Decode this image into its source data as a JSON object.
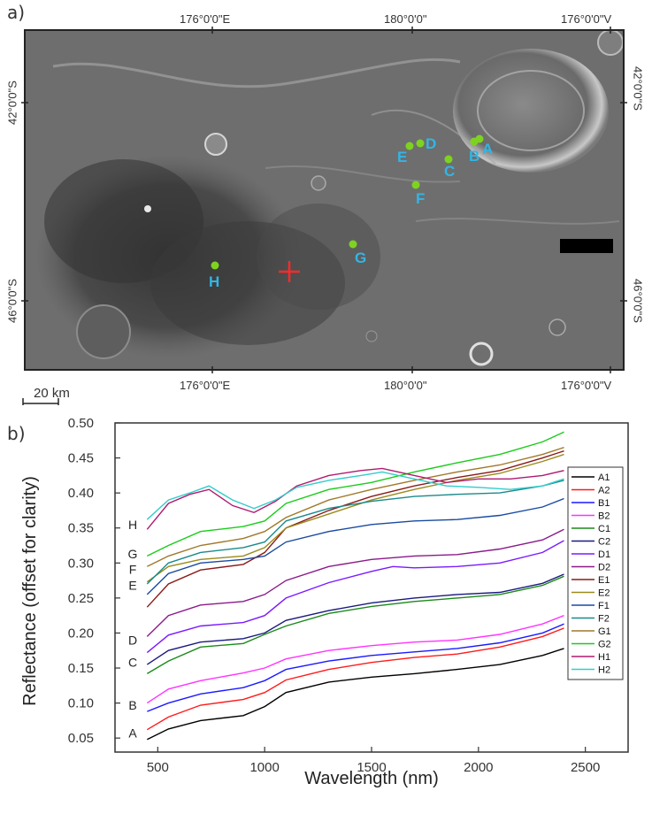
{
  "panel_a": {
    "label": "a)",
    "top_lon_labels": [
      "176°0'0\"E",
      "180°0'0\"",
      "176°0'0\"V"
    ],
    "bottom_lon_labels": [
      "176°0'0\"E",
      "180°0'0\"",
      "176°0'0\"V"
    ],
    "left_lat_labels": [
      "42°0'0\"S",
      "46°0'0\"S"
    ],
    "right_lat_labels": [
      "42°0'0\"S",
      "46°0'0\"S"
    ],
    "scale_bar": "20 km",
    "points": [
      {
        "id": "A",
        "color": "#7ed321"
      },
      {
        "id": "B",
        "color": "#7ed321"
      },
      {
        "id": "C",
        "color": "#7ed321"
      },
      {
        "id": "D",
        "color": "#7ed321"
      },
      {
        "id": "E",
        "color": "#7ed321"
      },
      {
        "id": "F",
        "color": "#7ed321"
      },
      {
        "id": "G",
        "color": "#7ed321"
      },
      {
        "id": "H",
        "color": "#7ed321"
      }
    ],
    "label_color": "#33b5e5",
    "cross_color": "#e02020"
  },
  "panel_b": {
    "label": "b)"
  },
  "chart_data": {
    "type": "line",
    "xlabel": "Wavelength (nm)",
    "ylabel": "Reflectance (offset for clarity)",
    "xlim": [
      300,
      2700
    ],
    "ylim": [
      0.03,
      0.5
    ],
    "xticks": [
      500,
      1000,
      1500,
      2000,
      2500
    ],
    "yticks": [
      0.05,
      0.1,
      0.15,
      0.2,
      0.25,
      0.3,
      0.35,
      0.4,
      0.45,
      0.5
    ],
    "ytick_labels": [
      "0.05",
      "0.10",
      "0.15",
      "0.20",
      "0.25",
      "0.30",
      "0.35",
      "0.40",
      "0.45",
      "0.50"
    ],
    "group_labels": [
      {
        "text": "A",
        "y": 0.057
      },
      {
        "text": "B",
        "y": 0.097
      },
      {
        "text": "C",
        "y": 0.158
      },
      {
        "text": "D",
        "y": 0.19
      },
      {
        "text": "E",
        "y": 0.268
      },
      {
        "text": "F",
        "y": 0.291
      },
      {
        "text": "G",
        "y": 0.313
      },
      {
        "text": "H",
        "y": 0.355
      }
    ],
    "legend_position": "right",
    "series": [
      {
        "name": "A1",
        "color": "#000000",
        "points": [
          [
            450,
            0.048
          ],
          [
            550,
            0.063
          ],
          [
            700,
            0.075
          ],
          [
            900,
            0.082
          ],
          [
            1000,
            0.095
          ],
          [
            1100,
            0.115
          ],
          [
            1300,
            0.13
          ],
          [
            1500,
            0.137
          ],
          [
            1700,
            0.142
          ],
          [
            1900,
            0.148
          ],
          [
            2100,
            0.155
          ],
          [
            2300,
            0.168
          ],
          [
            2400,
            0.178
          ]
        ]
      },
      {
        "name": "A2",
        "color": "#ff1a1a",
        "points": [
          [
            450,
            0.062
          ],
          [
            550,
            0.08
          ],
          [
            700,
            0.097
          ],
          [
            900,
            0.105
          ],
          [
            1000,
            0.115
          ],
          [
            1100,
            0.133
          ],
          [
            1300,
            0.148
          ],
          [
            1500,
            0.158
          ],
          [
            1700,
            0.165
          ],
          [
            1900,
            0.17
          ],
          [
            2100,
            0.18
          ],
          [
            2300,
            0.195
          ],
          [
            2400,
            0.207
          ]
        ]
      },
      {
        "name": "B1",
        "color": "#1a1aff",
        "points": [
          [
            450,
            0.088
          ],
          [
            550,
            0.1
          ],
          [
            700,
            0.113
          ],
          [
            900,
            0.122
          ],
          [
            1000,
            0.132
          ],
          [
            1100,
            0.148
          ],
          [
            1300,
            0.16
          ],
          [
            1500,
            0.168
          ],
          [
            1700,
            0.173
          ],
          [
            1900,
            0.178
          ],
          [
            2100,
            0.186
          ],
          [
            2300,
            0.2
          ],
          [
            2400,
            0.213
          ]
        ]
      },
      {
        "name": "B2",
        "color": "#ff33ff",
        "points": [
          [
            450,
            0.1
          ],
          [
            550,
            0.12
          ],
          [
            700,
            0.132
          ],
          [
            900,
            0.143
          ],
          [
            1000,
            0.15
          ],
          [
            1100,
            0.163
          ],
          [
            1300,
            0.175
          ],
          [
            1500,
            0.182
          ],
          [
            1700,
            0.187
          ],
          [
            1900,
            0.19
          ],
          [
            2100,
            0.198
          ],
          [
            2300,
            0.213
          ],
          [
            2400,
            0.225
          ]
        ]
      },
      {
        "name": "C1",
        "color": "#1a8a1a",
        "points": [
          [
            450,
            0.142
          ],
          [
            550,
            0.16
          ],
          [
            700,
            0.18
          ],
          [
            900,
            0.185
          ],
          [
            1000,
            0.198
          ],
          [
            1100,
            0.21
          ],
          [
            1300,
            0.228
          ],
          [
            1500,
            0.238
          ],
          [
            1700,
            0.245
          ],
          [
            1900,
            0.25
          ],
          [
            2100,
            0.255
          ],
          [
            2300,
            0.268
          ],
          [
            2400,
            0.281
          ]
        ]
      },
      {
        "name": "C2",
        "color": "#1a1a80",
        "points": [
          [
            450,
            0.155
          ],
          [
            550,
            0.175
          ],
          [
            700,
            0.187
          ],
          [
            900,
            0.192
          ],
          [
            1000,
            0.2
          ],
          [
            1100,
            0.218
          ],
          [
            1300,
            0.232
          ],
          [
            1500,
            0.243
          ],
          [
            1700,
            0.25
          ],
          [
            1900,
            0.255
          ],
          [
            2100,
            0.258
          ],
          [
            2300,
            0.271
          ],
          [
            2400,
            0.284
          ]
        ]
      },
      {
        "name": "D1",
        "color": "#7a1aff",
        "points": [
          [
            450,
            0.172
          ],
          [
            550,
            0.197
          ],
          [
            700,
            0.21
          ],
          [
            900,
            0.215
          ],
          [
            1000,
            0.225
          ],
          [
            1100,
            0.25
          ],
          [
            1300,
            0.272
          ],
          [
            1500,
            0.288
          ],
          [
            1600,
            0.295
          ],
          [
            1700,
            0.293
          ],
          [
            1900,
            0.295
          ],
          [
            2100,
            0.3
          ],
          [
            2300,
            0.315
          ],
          [
            2400,
            0.332
          ]
        ]
      },
      {
        "name": "D2",
        "color": "#8a1a8a",
        "points": [
          [
            450,
            0.195
          ],
          [
            550,
            0.225
          ],
          [
            700,
            0.24
          ],
          [
            900,
            0.245
          ],
          [
            1000,
            0.255
          ],
          [
            1100,
            0.275
          ],
          [
            1300,
            0.295
          ],
          [
            1500,
            0.305
          ],
          [
            1700,
            0.31
          ],
          [
            1900,
            0.312
          ],
          [
            2100,
            0.32
          ],
          [
            2300,
            0.333
          ],
          [
            2400,
            0.348
          ]
        ]
      },
      {
        "name": "E1",
        "color": "#8a1a1a",
        "points": [
          [
            450,
            0.237
          ],
          [
            550,
            0.27
          ],
          [
            700,
            0.29
          ],
          [
            900,
            0.298
          ],
          [
            1000,
            0.315
          ],
          [
            1100,
            0.35
          ],
          [
            1300,
            0.375
          ],
          [
            1500,
            0.395
          ],
          [
            1700,
            0.41
          ],
          [
            1900,
            0.422
          ],
          [
            2100,
            0.432
          ],
          [
            2300,
            0.45
          ],
          [
            2400,
            0.46
          ]
        ]
      },
      {
        "name": "E2",
        "color": "#9a8a1a",
        "points": [
          [
            450,
            0.273
          ],
          [
            550,
            0.295
          ],
          [
            700,
            0.305
          ],
          [
            900,
            0.31
          ],
          [
            1000,
            0.322
          ],
          [
            1100,
            0.35
          ],
          [
            1300,
            0.37
          ],
          [
            1500,
            0.39
          ],
          [
            1700,
            0.405
          ],
          [
            1900,
            0.418
          ],
          [
            2100,
            0.428
          ],
          [
            2300,
            0.445
          ],
          [
            2400,
            0.455
          ]
        ]
      },
      {
        "name": "F1",
        "color": "#1a4aa0",
        "points": [
          [
            450,
            0.255
          ],
          [
            550,
            0.285
          ],
          [
            700,
            0.3
          ],
          [
            900,
            0.305
          ],
          [
            1000,
            0.31
          ],
          [
            1100,
            0.33
          ],
          [
            1300,
            0.345
          ],
          [
            1500,
            0.355
          ],
          [
            1700,
            0.36
          ],
          [
            1900,
            0.362
          ],
          [
            2100,
            0.368
          ],
          [
            2300,
            0.38
          ],
          [
            2400,
            0.392
          ]
        ]
      },
      {
        "name": "F2",
        "color": "#1a8a8a",
        "points": [
          [
            450,
            0.27
          ],
          [
            550,
            0.3
          ],
          [
            700,
            0.315
          ],
          [
            900,
            0.322
          ],
          [
            1000,
            0.33
          ],
          [
            1100,
            0.36
          ],
          [
            1300,
            0.378
          ],
          [
            1500,
            0.388
          ],
          [
            1700,
            0.395
          ],
          [
            1900,
            0.398
          ],
          [
            2100,
            0.4
          ],
          [
            2300,
            0.41
          ],
          [
            2400,
            0.418
          ]
        ]
      },
      {
        "name": "G1",
        "color": "#a0782a",
        "points": [
          [
            450,
            0.295
          ],
          [
            550,
            0.31
          ],
          [
            700,
            0.325
          ],
          [
            900,
            0.335
          ],
          [
            1000,
            0.345
          ],
          [
            1100,
            0.365
          ],
          [
            1300,
            0.39
          ],
          [
            1500,
            0.405
          ],
          [
            1700,
            0.418
          ],
          [
            1900,
            0.43
          ],
          [
            2100,
            0.44
          ],
          [
            2300,
            0.455
          ],
          [
            2400,
            0.465
          ]
        ]
      },
      {
        "name": "G2",
        "color": "#1acc1a",
        "points": [
          [
            450,
            0.31
          ],
          [
            550,
            0.325
          ],
          [
            700,
            0.345
          ],
          [
            900,
            0.352
          ],
          [
            1000,
            0.36
          ],
          [
            1100,
            0.385
          ],
          [
            1300,
            0.405
          ],
          [
            1500,
            0.415
          ],
          [
            1700,
            0.43
          ],
          [
            1900,
            0.443
          ],
          [
            2100,
            0.455
          ],
          [
            2300,
            0.473
          ],
          [
            2400,
            0.487
          ]
        ]
      },
      {
        "name": "H1",
        "color": "#b01a70",
        "points": [
          [
            450,
            0.348
          ],
          [
            550,
            0.385
          ],
          [
            650,
            0.398
          ],
          [
            740,
            0.405
          ],
          [
            850,
            0.382
          ],
          [
            950,
            0.372
          ],
          [
            1050,
            0.388
          ],
          [
            1150,
            0.41
          ],
          [
            1300,
            0.425
          ],
          [
            1450,
            0.432
          ],
          [
            1550,
            0.435
          ],
          [
            1700,
            0.425
          ],
          [
            1850,
            0.415
          ],
          [
            2000,
            0.42
          ],
          [
            2150,
            0.42
          ],
          [
            2300,
            0.425
          ],
          [
            2400,
            0.432
          ]
        ]
      },
      {
        "name": "H2",
        "color": "#33cccc",
        "points": [
          [
            450,
            0.362
          ],
          [
            550,
            0.39
          ],
          [
            650,
            0.4
          ],
          [
            740,
            0.41
          ],
          [
            850,
            0.39
          ],
          [
            950,
            0.378
          ],
          [
            1050,
            0.39
          ],
          [
            1150,
            0.408
          ],
          [
            1300,
            0.418
          ],
          [
            1450,
            0.425
          ],
          [
            1550,
            0.43
          ],
          [
            1700,
            0.42
          ],
          [
            1850,
            0.41
          ],
          [
            2000,
            0.408
          ],
          [
            2150,
            0.405
          ],
          [
            2300,
            0.41
          ],
          [
            2400,
            0.42
          ]
        ]
      }
    ]
  }
}
